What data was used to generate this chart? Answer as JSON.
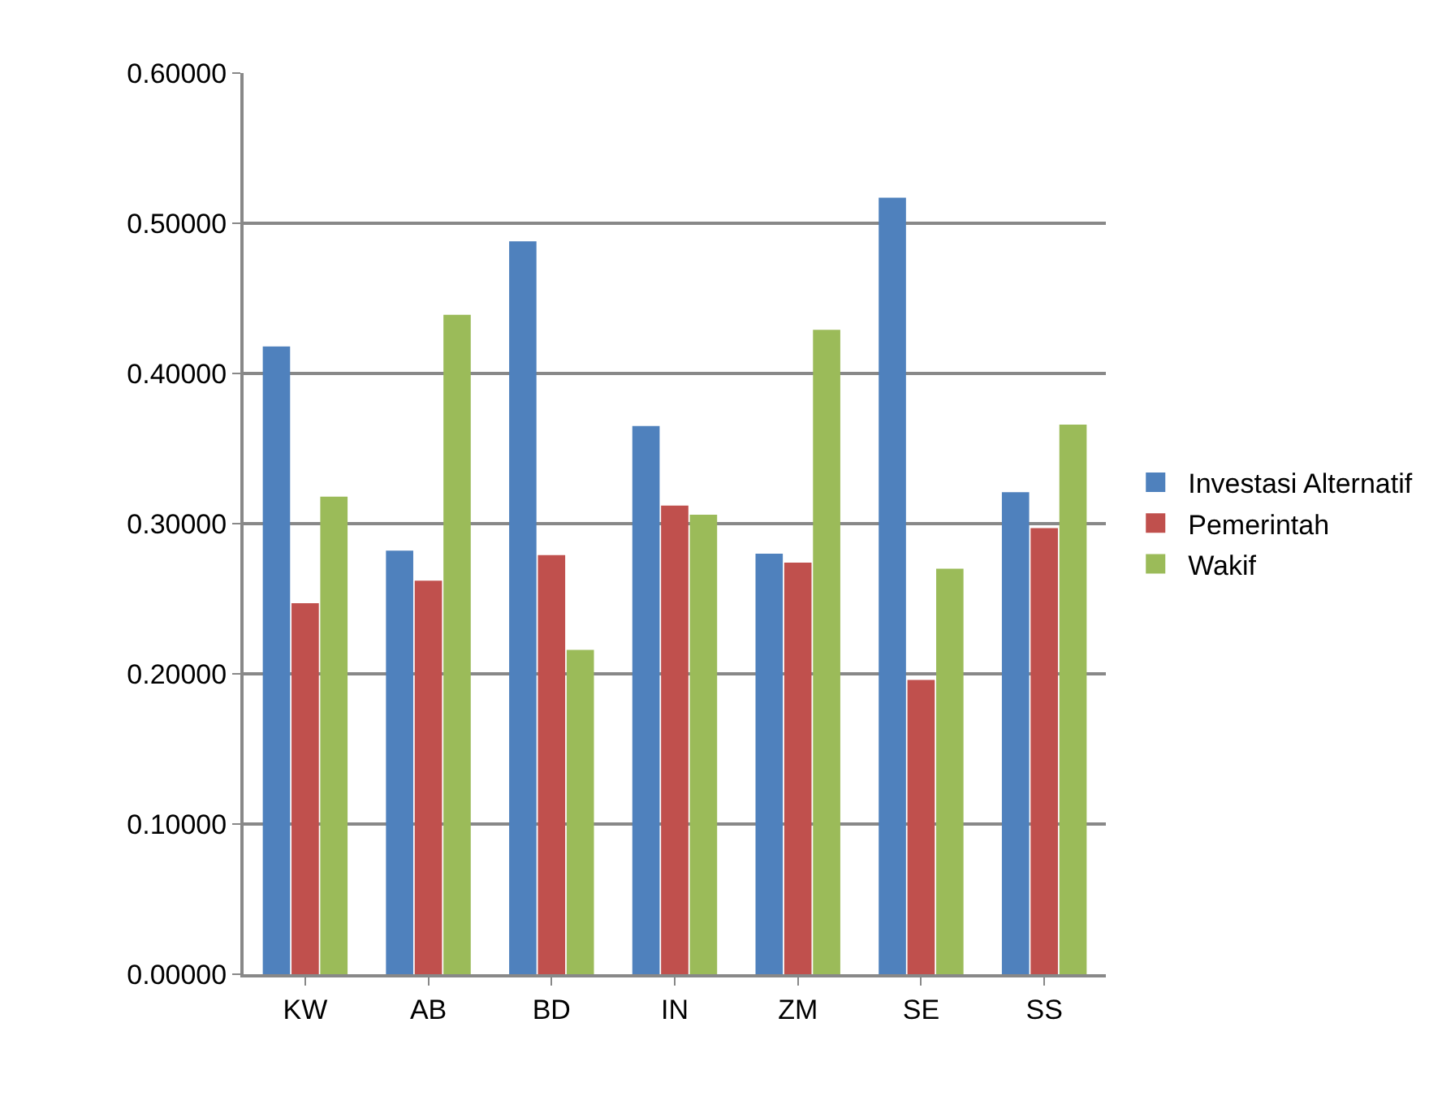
{
  "chart_data": {
    "type": "bar",
    "categories": [
      "KW",
      "AB",
      "BD",
      "IN",
      "ZM",
      "SE",
      "SS"
    ],
    "series": [
      {
        "name": "Investasi Alternatif",
        "color": "#4f81bd",
        "values": [
          0.418,
          0.282,
          0.488,
          0.365,
          0.28,
          0.517,
          0.321
        ]
      },
      {
        "name": "Pemerintah",
        "color": "#c0504d",
        "values": [
          0.247,
          0.262,
          0.279,
          0.312,
          0.274,
          0.196,
          0.297
        ]
      },
      {
        "name": "Wakif",
        "color": "#9bbb59",
        "values": [
          0.318,
          0.439,
          0.216,
          0.306,
          0.429,
          0.27,
          0.366
        ]
      }
    ],
    "ylim": [
      0,
      0.6
    ],
    "yticks": [
      {
        "value": 0,
        "label": "0.00000"
      },
      {
        "value": 0.1,
        "label": "0.10000"
      },
      {
        "value": 0.2,
        "label": "0.20000"
      },
      {
        "value": 0.3,
        "label": "0.30000"
      },
      {
        "value": 0.4,
        "label": "0.40000"
      },
      {
        "value": 0.5,
        "label": "0.50000"
      },
      {
        "value": 0.6,
        "label": "0.60000"
      }
    ],
    "grid": "y",
    "legend": "right"
  }
}
